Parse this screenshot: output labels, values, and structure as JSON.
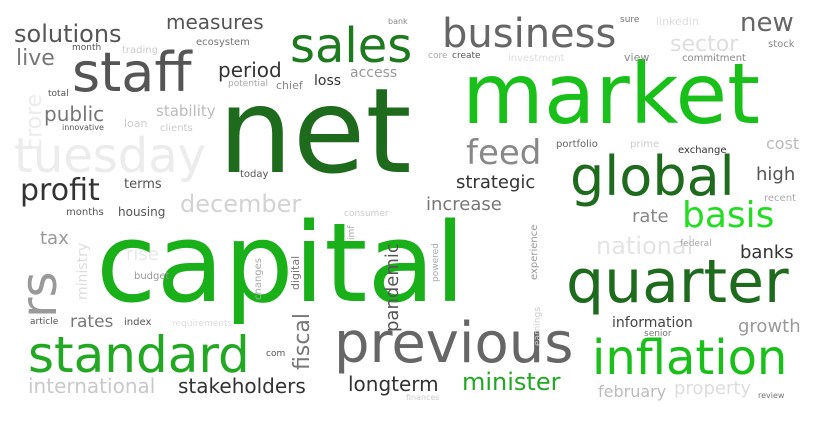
{
  "cloud": {
    "net": "net",
    "capital": "capital",
    "market": "market",
    "previous": "previous",
    "standard": "standard",
    "inflation": "inflation",
    "quarter": "quarter",
    "global": "global",
    "staff": "staff",
    "sales": "sales",
    "business": "business",
    "tuesday": "tuesday",
    "basis": "basis",
    "profit": "profit",
    "feed": "feed",
    "solutions": "solutions",
    "measures": "measures",
    "live": "live",
    "period": "period",
    "new": "new",
    "public": "public",
    "stability": "stability",
    "sector": "sector",
    "december": "december",
    "strategic": "strategic",
    "increase": "increase",
    "high": "high",
    "rate": "rate",
    "national": "national",
    "banks": "banks",
    "tax": "tax",
    "rs": "rs",
    "rates": "rates",
    "international": "international",
    "stakeholders": "stakeholders",
    "fiscal": "fiscal",
    "longterm": "longterm",
    "minister": "minister",
    "information": "information",
    "growth": "growth",
    "february": "february",
    "property": "property",
    "pandemic": "pandemic",
    "loss": "loss",
    "access": "access",
    "chief": "chief",
    "potential": "potential",
    "terms": "terms",
    "housing": "housing",
    "months": "months",
    "loan": "loan",
    "clients": "clients",
    "innovative": "innovative",
    "total": "total",
    "month": "month",
    "trading": "trading",
    "ecosystem": "ecosystem",
    "bank": "bank",
    "core": "core",
    "create": "create",
    "sure": "sure",
    "linkedin": "linkedin",
    "stock": "stock",
    "view": "view",
    "investment": "investment",
    "commitment": "commitment",
    "portfolio": "portfolio",
    "prime": "prime",
    "exchange": "exchange",
    "cost": "cost",
    "recent": "recent",
    "federal": "federal",
    "today": "today",
    "consumer": "consumer",
    "experience": "experience",
    "powered": "powered",
    "digital": "digital",
    "changes": "changes",
    "budget": "budget",
    "ministry": "ministry",
    "rise": "rise",
    "index": "index",
    "requirements": "requirements",
    "article": "article",
    "com": "com",
    "senior": "senior",
    "finances": "finances",
    "review": "review",
    "crore": "crore",
    "imf": "imf",
    "earnings": "earnings"
  },
  "colors": {
    "dark_green": "#1e6b1e",
    "bright_green": "#19b019",
    "lime": "#22dd22",
    "dark_gray": "#444444",
    "gray": "#777777",
    "light_gray": "#c9c9c9",
    "faint_gray": "#ececec"
  }
}
